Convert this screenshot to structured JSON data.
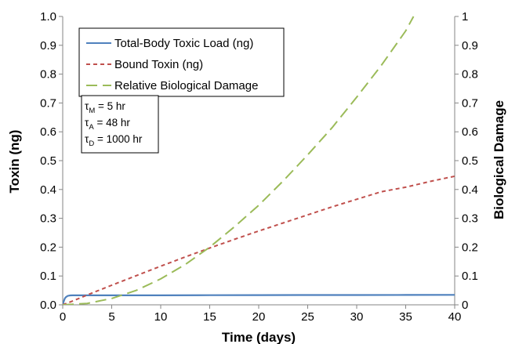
{
  "chart_data": {
    "type": "line",
    "xlabel": "Time (days)",
    "ylabel": "Toxin (ng)",
    "y2label": "Biological Damage",
    "xlim": [
      0,
      40
    ],
    "ylim": [
      0,
      1.0
    ],
    "y2lim": [
      0,
      1
    ],
    "x_ticks": [
      "0",
      "5",
      "10",
      "15",
      "20",
      "25",
      "30",
      "35",
      "40"
    ],
    "y_ticks": [
      "0.0",
      "0.1",
      "0.2",
      "0.3",
      "0.4",
      "0.5",
      "0.6",
      "0.7",
      "0.8",
      "0.9",
      "1.0"
    ],
    "y2_ticks": [
      "0",
      "0.1",
      "0.2",
      "0.3",
      "0.4",
      "0.5",
      "0.6",
      "0.7",
      "0.8",
      "0.9",
      "1"
    ],
    "grid": false,
    "legend_position": "top-left",
    "series": [
      {
        "name": "Total-Body Toxic Load (ng)",
        "color": "#4f81bd",
        "style": "solid",
        "axis": "left",
        "x": [
          0,
          0.1,
          0.2,
          0.3,
          0.5,
          0.75,
          1,
          1.5,
          2,
          5,
          10,
          15,
          20,
          25,
          30,
          35,
          40
        ],
        "y": [
          0,
          0.012,
          0.021,
          0.026,
          0.031,
          0.0325,
          0.033,
          0.033,
          0.033,
          0.033,
          0.033,
          0.0333,
          0.0336,
          0.0339,
          0.0341,
          0.0343,
          0.0345
        ]
      },
      {
        "name": "Bound Toxin (ng)",
        "color": "#c0504d",
        "style": "dashed",
        "axis": "left",
        "x": [
          0,
          1,
          2,
          3,
          5,
          7.5,
          10,
          12.5,
          15,
          17.5,
          20,
          22.5,
          25,
          27.5,
          30,
          32.5,
          35,
          37.5,
          40
        ],
        "y": [
          0,
          0.013,
          0.027,
          0.041,
          0.068,
          0.101,
          0.134,
          0.166,
          0.197,
          0.227,
          0.256,
          0.284,
          0.312,
          0.34,
          0.366,
          0.392,
          0.408,
          0.428,
          0.446
        ]
      },
      {
        "name": "Relative Biological Damage",
        "color": "#9bbb59",
        "style": "longdash",
        "axis": "right",
        "x": [
          0,
          2.5,
          5,
          7.5,
          10,
          12.5,
          15,
          17.5,
          20,
          22.5,
          25,
          27.5,
          30,
          32.5,
          35,
          35.8
        ],
        "y": [
          0,
          0.005,
          0.022,
          0.05,
          0.09,
          0.14,
          0.2,
          0.27,
          0.345,
          0.43,
          0.52,
          0.615,
          0.72,
          0.83,
          0.95,
          1.0
        ]
      }
    ],
    "annotation": {
      "lines": [
        {
          "tau": "τ",
          "sub": "M",
          "value": " = 5 hr"
        },
        {
          "tau": "τ",
          "sub": "A",
          "value": " = 48 hr"
        },
        {
          "tau": "τ",
          "sub": "D",
          "value": " = 1000 hr"
        }
      ]
    }
  }
}
